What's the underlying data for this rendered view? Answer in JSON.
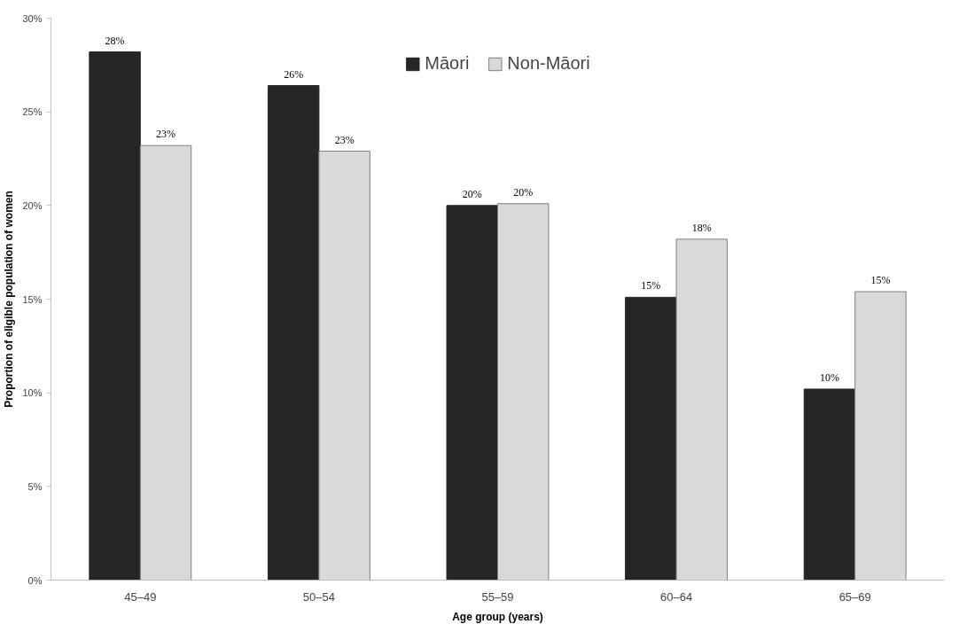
{
  "chart_data": {
    "type": "bar",
    "xlabel": "Age group (years)",
    "ylabel": "Proportion of eligible population of women",
    "categories": [
      "45–49",
      "50–54",
      "55–59",
      "60–64",
      "65–69"
    ],
    "series": [
      {
        "name": "Māori",
        "color": "#262626",
        "values": [
          28.2,
          26.4,
          20.0,
          15.1,
          10.2
        ],
        "value_labels": [
          "28%",
          "26%",
          "20%",
          "15%",
          "10%"
        ]
      },
      {
        "name": "Non-Māori",
        "color": "#d9d9d9",
        "values": [
          23.2,
          22.9,
          20.1,
          18.2,
          15.4
        ],
        "value_labels": [
          "23%",
          "23%",
          "20%",
          "18%",
          "15%"
        ]
      }
    ],
    "ylim": [
      0,
      30
    ],
    "yticks": [
      {
        "value": 0,
        "label": "0%"
      },
      {
        "value": 5,
        "label": "5%"
      },
      {
        "value": 10,
        "label": "10%"
      },
      {
        "value": 15,
        "label": "15%"
      },
      {
        "value": 20,
        "label": "20%"
      },
      {
        "value": 25,
        "label": "25%"
      },
      {
        "value": 30,
        "label": "30%"
      }
    ],
    "grid": false,
    "legend": "top"
  }
}
